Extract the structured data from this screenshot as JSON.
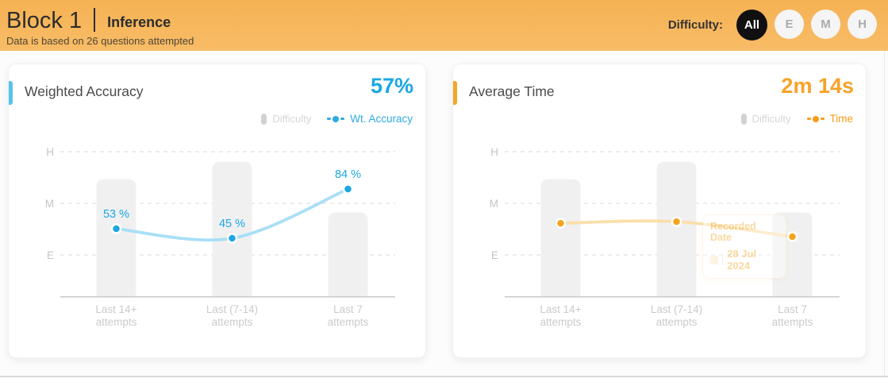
{
  "header": {
    "title": "Block 1",
    "section": "Inference",
    "note": "Data is based on 26 questions attempted",
    "difficulty_label": "Difficulty:",
    "difficulty_options": [
      "All",
      "E",
      "M",
      "H"
    ],
    "selected_difficulty": "All",
    "background_color": "#f7b95e",
    "selected_chip_color": "#101010"
  },
  "cards": [
    {
      "title": "Weighted Accuracy",
      "value": "57%",
      "accent_color": "#55c4ec",
      "value_color": "#1ba7e3",
      "legend": {
        "bar_label": "Difficulty",
        "bar_color": "#d2d2d2",
        "series_label": "Wt. Accuracy",
        "series_color": "#2fa9e0"
      }
    },
    {
      "title": "Average Time",
      "value": "2m 14s",
      "accent_color": "#f5a623",
      "value_color": "#f7a229",
      "legend": {
        "bar_label": "Difficulty",
        "bar_color": "#d2d2d2",
        "series_label": "Time",
        "series_color": "#f89c1c"
      },
      "tooltip": {
        "title": "Recorded Date",
        "date": "28 Jul 2024"
      }
    }
  ],
  "chart_data": [
    {
      "type": "bar+line",
      "title": "Weighted Accuracy",
      "categories": [
        [
          "Last 14+",
          "attempts"
        ],
        [
          "Last (7-14)",
          "attempts"
        ],
        [
          "Last 7",
          "attempts"
        ]
      ],
      "y_axis": {
        "ticks": [
          "H",
          "M",
          "E"
        ],
        "meaning": "difficulty level (High/Medium/Easy)"
      },
      "grid": "dashed horizontal",
      "legend_position": "top-right",
      "bars": {
        "name": "Difficulty",
        "relative_heights": [
          0.81,
          0.93,
          0.58
        ],
        "color": "#f0f0f1"
      },
      "line": {
        "name": "Wt. Accuracy",
        "unit": "%",
        "values": [
          53,
          45,
          84
        ],
        "point_labels": [
          "53 %",
          "45 %",
          "84 %"
        ],
        "relative_heights": [
          0.467,
          0.401,
          0.742
        ],
        "line_color": "#a8dff7",
        "dot_color": "#1ba7e3",
        "label_color": "#1ba7e3"
      }
    },
    {
      "type": "bar+line",
      "title": "Average Time",
      "categories": [
        [
          "Last 14+",
          "attempts"
        ],
        [
          "Last (7-14)",
          "attempts"
        ],
        [
          "Last 7",
          "attempts"
        ]
      ],
      "y_axis": {
        "ticks": [
          "H",
          "M",
          "E"
        ],
        "meaning": "difficulty level (High/Medium/Easy)"
      },
      "grid": "dashed horizontal",
      "legend_position": "top-right",
      "bars": {
        "name": "Difficulty",
        "relative_heights": [
          0.81,
          0.93,
          0.58
        ],
        "color": "#f0f0f1"
      },
      "line": {
        "name": "Time",
        "point_labels": [],
        "relative_heights": [
          0.505,
          0.516,
          0.412
        ],
        "line_color": "#fadfab",
        "dot_color": "#f5a41f",
        "label_color": "#f7a229"
      }
    }
  ]
}
